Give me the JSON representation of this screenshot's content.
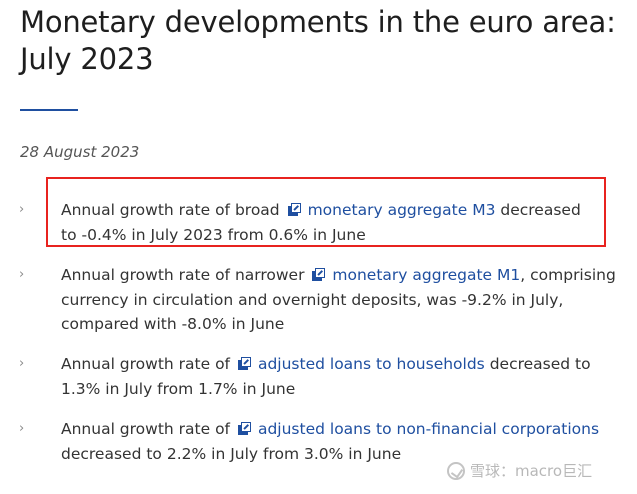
{
  "page": {
    "title": "Monetary developments in the euro area: July 2023",
    "date": "28 August 2023"
  },
  "bullets": [
    {
      "before": "Annual growth rate of broad",
      "link": "monetary aggregate M3",
      "after": "decreased to -0.4% in July 2023 from 0.6% in June"
    },
    {
      "before": "Annual growth rate of narrower",
      "link": "monetary aggregate M1",
      "after": ", comprising currency in circulation and overnight deposits, was -9.2% in July, compared with -8.0% in June"
    },
    {
      "before": "Annual growth rate of",
      "link": "adjusted loans to households",
      "after": "decreased to 1.3% in July from 1.7% in June"
    },
    {
      "before": "Annual growth rate of",
      "link": "adjusted loans to non-financial corporations",
      "after": "decreased to 2.2% in July from 3.0% in June"
    }
  ],
  "icons": {
    "bullet": "chevron-right-icon",
    "link": "external-link-icon"
  },
  "colors": {
    "link": "#1f4fa0",
    "highlight": "#e8231f",
    "text": "#333333"
  },
  "watermark": {
    "text": "雪球：macro巨汇"
  }
}
